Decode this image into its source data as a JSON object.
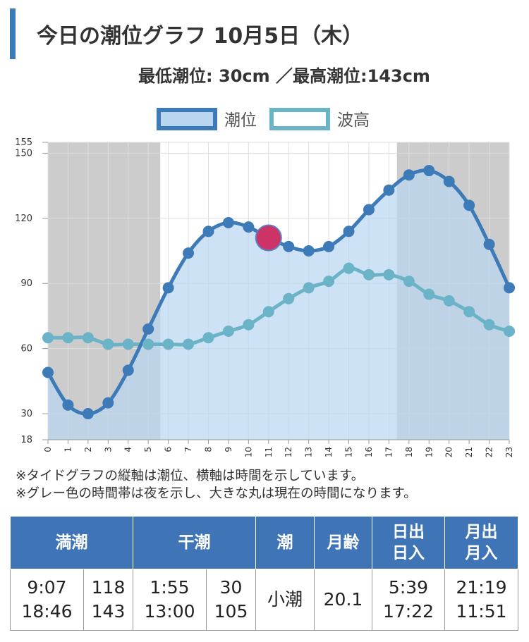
{
  "page": {
    "title": "今日の潮位グラフ 10月5日（木）",
    "subtitle": "最低潮位: 30cm ／最高潮位:143cm"
  },
  "legend": {
    "tide": "潮位",
    "wave": "波高"
  },
  "notes": [
    "※タイドグラフの縦軸は潮位、横軸は時間を示しています。",
    "※グレー色の時間帯は夜を示し、大きな丸は現在の時間になります。"
  ],
  "colors": {
    "tide_line": "#3d7bb8",
    "tide_fill": "#b8d6f0",
    "wave_line": "#6bb3c6",
    "night": "#cccccc",
    "current_marker": "#cc3366",
    "header_bg": "#3f75b6"
  },
  "chart_data": {
    "type": "line",
    "x": [
      0,
      1,
      2,
      3,
      4,
      5,
      6,
      7,
      8,
      9,
      10,
      11,
      12,
      13,
      14,
      15,
      16,
      17,
      18,
      19,
      20,
      21,
      22,
      23
    ],
    "series": [
      {
        "name": "潮位",
        "values": [
          49,
          34,
          30,
          35,
          50,
          69,
          88,
          104,
          114,
          118,
          116,
          111,
          107,
          105,
          107,
          114,
          124,
          133,
          140,
          142,
          137,
          126,
          108,
          88
        ]
      },
      {
        "name": "波高",
        "values": [
          65,
          65,
          65,
          62,
          62,
          62,
          62,
          62,
          65,
          68,
          71,
          77,
          83,
          88,
          91,
          97,
          94,
          94,
          91,
          85,
          82,
          77,
          71,
          68
        ]
      }
    ],
    "y_ticks": [
      18,
      30,
      60,
      90,
      120,
      150,
      155
    ],
    "ylim": [
      18,
      155
    ],
    "xlim": [
      0,
      23
    ],
    "night_ranges": [
      [
        0,
        5.6
      ],
      [
        17.4,
        23
      ]
    ],
    "current_hour": 11,
    "current_value": 111,
    "grid": true,
    "legend_position": "top-center"
  },
  "table": {
    "headers": {
      "high": "満潮",
      "low": "干潮",
      "tide_type": "潮",
      "moon_age": "月齢",
      "sun_rise": "日出",
      "sun_set": "日入",
      "moon_rise": "月出",
      "moon_set": "月入"
    },
    "high_times": [
      "9:07",
      "18:46"
    ],
    "high_levels": [
      "118",
      "143"
    ],
    "low_times": [
      "1:55",
      "13:00"
    ],
    "low_levels": [
      "30",
      "105"
    ],
    "tide_type": "小潮",
    "moon_age": "20.1",
    "sun_times": [
      "5:39",
      "17:22"
    ],
    "moon_times": [
      "21:19",
      "11:51"
    ]
  }
}
